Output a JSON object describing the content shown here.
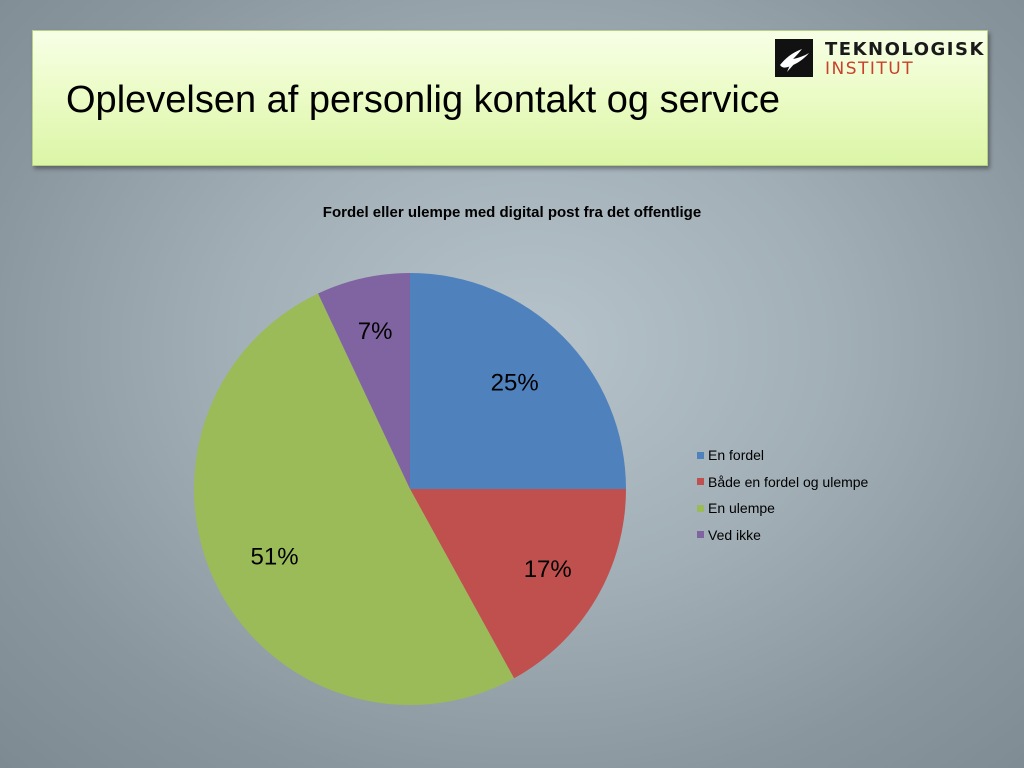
{
  "slide": {
    "title": "Oplevelsen af personlig kontakt og service"
  },
  "logo": {
    "line1": "TEKNOLOGISK",
    "line2": "INSTITUT"
  },
  "chart_data": {
    "type": "pie",
    "title": "Fordel eller ulempe med digital post fra det offentlige",
    "categories": [
      "En fordel",
      "Både en fordel og ulempe",
      "En ulempe",
      "Ved ikke"
    ],
    "values": [
      25,
      17,
      51,
      7
    ],
    "labels": [
      "25%",
      "17%",
      "51%",
      "7%"
    ],
    "colors": [
      "#4f81bd",
      "#c0504d",
      "#9bbb59",
      "#8064a2"
    ],
    "legend_position": "right"
  }
}
